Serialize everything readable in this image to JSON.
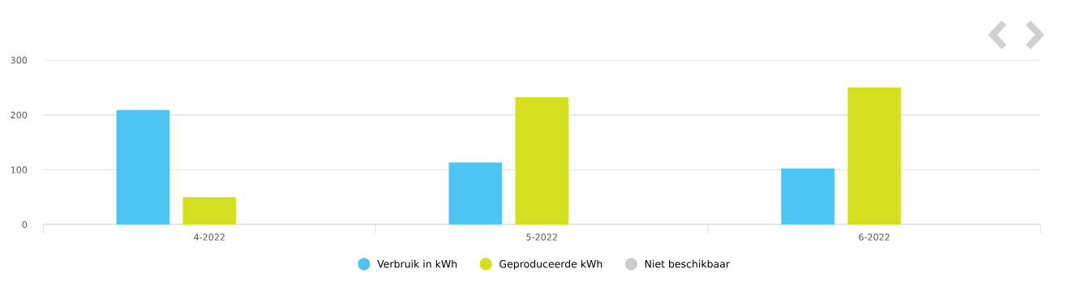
{
  "chart_data": {
    "type": "bar",
    "categories": [
      "4-2022",
      "5-2022",
      "6-2022"
    ],
    "series": [
      {
        "name": "Verbruik in kWh",
        "color": "#4cc5f2",
        "values": [
          209,
          113,
          102
        ]
      },
      {
        "name": "Geproduceerde kWh",
        "color": "#d5df21",
        "values": [
          50,
          232,
          250
        ]
      },
      {
        "name": "Niet beschikbaar",
        "color": "#cccccc",
        "values": [
          null,
          null,
          null
        ]
      }
    ],
    "ylim": [
      0,
      300
    ],
    "yticks": [
      0,
      100,
      200,
      300
    ],
    "grid": "y",
    "legend": "bottom"
  }
}
